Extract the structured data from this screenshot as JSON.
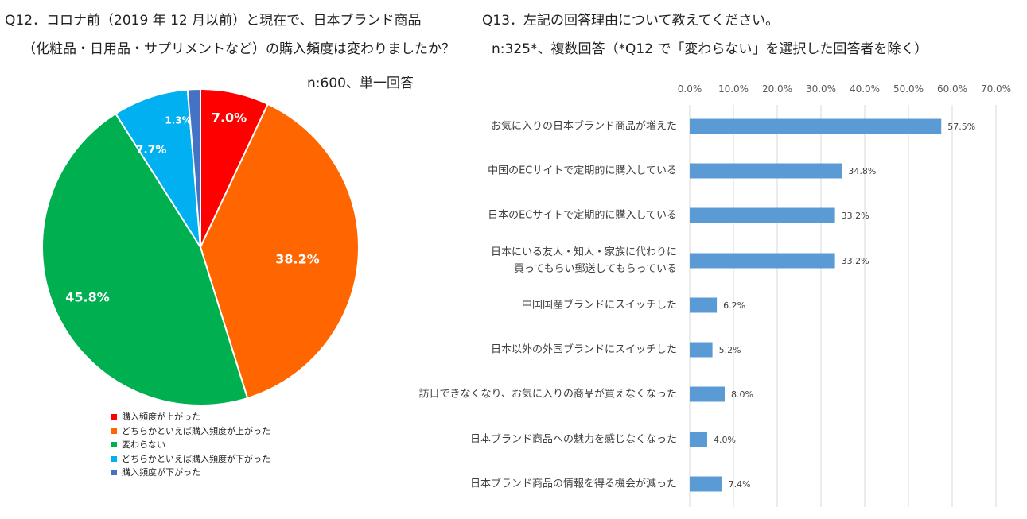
{
  "q12": {
    "title_line1": "Q12．コロナ前（2019 年 12 月以前）と現在で、日本ブランド商品",
    "title_line2": "（化粧品・日用品・サプリメントなど）の購入頻度は変わりましたか？",
    "n_label": "n:600、単一回答"
  },
  "q13": {
    "title_line1": "Q13．左記の回答理由について教えてください。",
    "title_line2": "n:325*、複数回答（*Q12 で「変わらない」を選択した回答者を除く）"
  },
  "chart_data": [
    {
      "type": "pie",
      "title": "Q12．コロナ前（2019 年 12 月以前）と現在で、日本ブランド商品（化粧品・日用品・サプリメントなど）の購入頻度は変わりましたか？",
      "start_angle": "12 o'clock",
      "direction": "clockwise",
      "slices": [
        {
          "label": "購入頻度が上がった",
          "value": 7.0,
          "value_label": "7.0%",
          "color": "#ff0000"
        },
        {
          "label": "どちらかといえば購入頻度が上がった",
          "value": 38.2,
          "value_label": "38.2%",
          "color": "#ff6600"
        },
        {
          "label": "変わらない",
          "value": 45.8,
          "value_label": "45.8%",
          "color": "#00b050"
        },
        {
          "label": "どちらかといえば購入頻度が下がった",
          "value": 7.7,
          "value_label": "7.7%",
          "color": "#00b0f0"
        },
        {
          "label": "購入頻度が下がった",
          "value": 1.3,
          "value_label": "1.3%",
          "color": "#4472c4"
        }
      ],
      "legend_position": "bottom-left"
    },
    {
      "type": "bar",
      "orientation": "horizontal",
      "title": "Q13．左記の回答理由について教えてください。",
      "xlim": [
        0,
        70
      ],
      "x_ticks": [
        "0.0%",
        "10.0%",
        "20.0%",
        "30.0%",
        "40.0%",
        "50.0%",
        "60.0%",
        "70.0%"
      ],
      "gridlines": true,
      "bar_color": "#5b9bd5",
      "categories": [
        [
          "お気に入りの日本ブランド商品が増えた"
        ],
        [
          "中国のECサイトで定期的に購入している"
        ],
        [
          "日本のECサイトで定期的に購入している"
        ],
        [
          "日本にいる友人・知人・家族に代わりに",
          "買ってもらい郵送してもらっている"
        ],
        [
          "中国国産ブランドにスイッチした"
        ],
        [
          "日本以外の外国ブランドにスイッチした"
        ],
        [
          "訪日できなくなり、お気に入りの商品が買えなくなった"
        ],
        [
          "日本ブランド商品への魅力を感じなくなった"
        ],
        [
          "日本ブランド商品の情報を得る機会が減った"
        ]
      ],
      "values": [
        57.5,
        34.8,
        33.2,
        33.2,
        6.2,
        5.2,
        8.0,
        4.0,
        7.4
      ],
      "value_labels": [
        "57.5%",
        "34.8%",
        "33.2%",
        "33.2%",
        "6.2%",
        "5.2%",
        "8.0%",
        "4.0%",
        "7.4%"
      ]
    }
  ]
}
